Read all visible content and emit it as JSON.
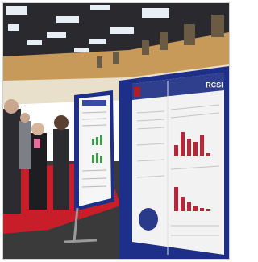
{
  "poster": {
    "logo": "RCSI"
  }
}
